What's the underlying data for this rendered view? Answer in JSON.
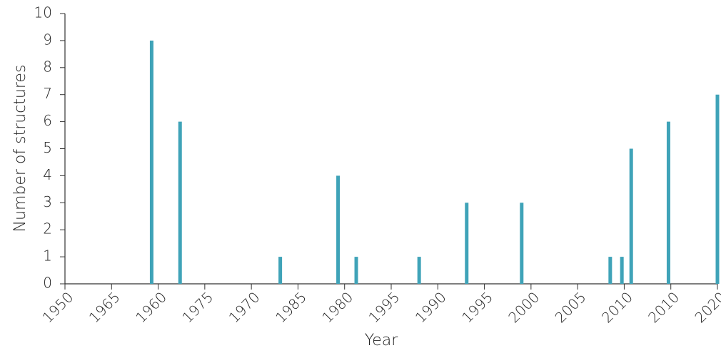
{
  "chart_data": {
    "type": "bar",
    "xlabel": "Year",
    "ylabel": "Number of structures",
    "ylim": [
      0,
      10
    ],
    "y_ticks": [
      "0",
      "1",
      "2",
      "3",
      "4",
      "5",
      "6",
      "7",
      "8",
      "9",
      "10"
    ],
    "x_ticks": [
      "1950",
      "1965",
      "1960",
      "1975",
      "1970",
      "1985",
      "1980",
      "1995",
      "1990",
      "1995",
      "2000",
      "2005",
      "2010",
      "2010",
      "2020"
    ],
    "grid": false,
    "bar_color": "#3fa3b8",
    "x_range": [
      0,
      14
    ],
    "bars": [
      {
        "x": 1.86,
        "value": 9
      },
      {
        "x": 2.47,
        "value": 6
      },
      {
        "x": 4.62,
        "value": 1
      },
      {
        "x": 5.86,
        "value": 4
      },
      {
        "x": 6.25,
        "value": 1
      },
      {
        "x": 7.6,
        "value": 1
      },
      {
        "x": 8.62,
        "value": 3
      },
      {
        "x": 9.8,
        "value": 3
      },
      {
        "x": 11.7,
        "value": 1
      },
      {
        "x": 11.95,
        "value": 1
      },
      {
        "x": 12.15,
        "value": 5
      },
      {
        "x": 12.95,
        "value": 6
      },
      {
        "x": 14.0,
        "value": 7
      }
    ]
  }
}
